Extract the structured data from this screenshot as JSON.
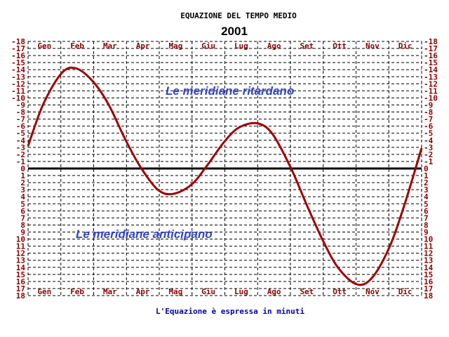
{
  "chart_data": {
    "type": "line",
    "title": "EQUAZIONE DEL TEMPO MEDIO",
    "subtitle": "2001",
    "footer": "L'Equazione è espressa in minuti",
    "annotations": [
      "Le meridiane ritardano",
      "Le meridiane anticipano"
    ],
    "categories": [
      "Gen",
      "Feb",
      "Mar",
      "Apr",
      "Mag",
      "Giu",
      "Lug",
      "Ago",
      "Set",
      "Ott",
      "Nov",
      "Dic"
    ],
    "ylim": [
      -18,
      18
    ],
    "yticks": [
      "-18",
      "-17",
      "-16",
      "-15",
      "-14",
      "-13",
      "-12",
      "-11",
      "-10",
      "-9",
      "-8",
      "-7",
      "-6",
      "-5",
      "-4",
      "-3",
      "-2",
      "-1",
      "0",
      "1",
      "2",
      "3",
      "4",
      "5",
      "6",
      "7",
      "8",
      "9",
      "10",
      "11",
      "12",
      "13",
      "14",
      "15",
      "16",
      "17",
      "18"
    ],
    "grid": true,
    "zero_line": true,
    "series": [
      {
        "color": "#a00000",
        "x": [
          1,
          15,
          32,
          45,
          60,
          75,
          91,
          105,
          121,
          135,
          152,
          166,
          182,
          196,
          213,
          227,
          244,
          258,
          274,
          288,
          305,
          319,
          335,
          349,
          365
        ],
        "values": [
          -3.2,
          -9.1,
          -13.5,
          -14.2,
          -12.5,
          -9.2,
          -4.1,
          -0.2,
          3.0,
          3.6,
          2.3,
          -0.3,
          -3.7,
          -5.8,
          -6.4,
          -4.9,
          -0.1,
          4.9,
          10.3,
          14.1,
          16.4,
          15.5,
          11.2,
          5.2,
          -2.9
        ]
      }
    ],
    "colors": {
      "zero_line": "#000000",
      "grid": "#000000",
      "tick": "#8b0000",
      "annotation": "#3344cc",
      "footer": "#0000aa"
    }
  }
}
